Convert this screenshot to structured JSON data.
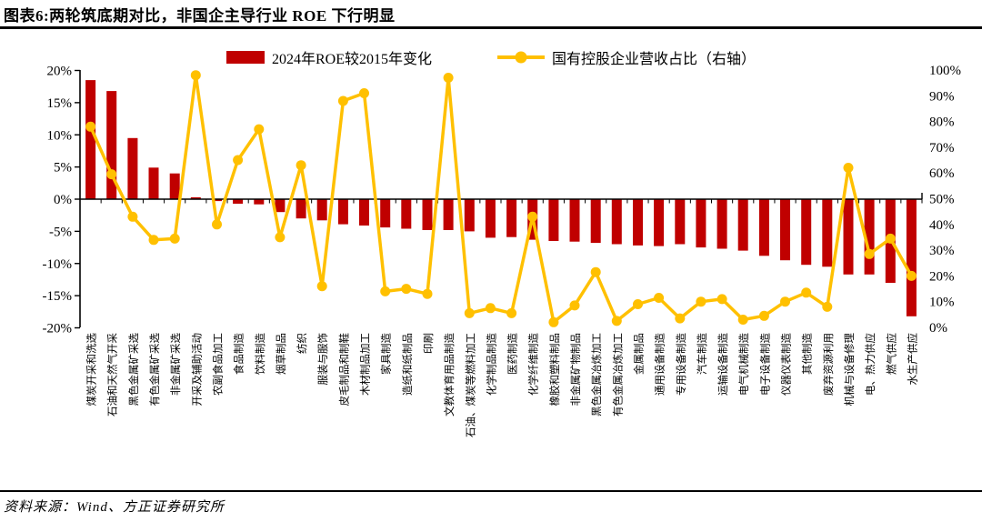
{
  "page": {
    "title": "图表6:两轮筑底期对比，非国企主导行业 ROE 下行明显",
    "source": "资料来源：Wind、方正证券研究所"
  },
  "legend": {
    "bar_label": "2024年ROE较2015年变化",
    "line_label": "国有控股企业营收占比（右轴）"
  },
  "colors": {
    "bar": "#C00000",
    "line": "#FFC000",
    "axis": "#000000"
  },
  "chart_data": {
    "type": "bar+line combo",
    "title": "图表6:两轮筑底期对比，非国企主导行业 ROE 下行明显",
    "grid": "off",
    "legend_position": "top-center",
    "left_axis": {
      "unit": "%",
      "range": [
        -20,
        20
      ],
      "tick_labels": [
        "20%",
        "15%",
        "10%",
        "5%",
        "0%",
        "-5%",
        "-10%",
        "-15%",
        "-20%"
      ],
      "tick_values": [
        20,
        15,
        10,
        5,
        0,
        -5,
        -10,
        -15,
        -20
      ]
    },
    "right_axis": {
      "unit": "%",
      "range": [
        0,
        100
      ],
      "tick_labels": [
        "100%",
        "90%",
        "80%",
        "70%",
        "60%",
        "50%",
        "40%",
        "30%",
        "20%",
        "10%",
        "0%"
      ],
      "tick_values": [
        100,
        90,
        80,
        70,
        60,
        50,
        40,
        30,
        20,
        10,
        0
      ]
    },
    "categories": [
      "煤炭开采和洗选",
      "石油和天然气开采",
      "黑色金属矿采选",
      "有色金属矿采选",
      "非金属矿采选",
      "开采及辅助活动",
      "农副食品加工",
      "食品制造",
      "饮料制造",
      "烟草制品",
      "纺织",
      "服装与服饰",
      "皮毛制品和制鞋",
      "木材制品加工",
      "家具制造",
      "造纸和纸制品",
      "印刷",
      "文教体育用品制造",
      "石油、煤炭等燃料加工",
      "化学制品制造",
      "医药制造",
      "化学纤维制造",
      "橡胶和塑料制品",
      "非金属矿物制品",
      "黑色金属冶炼加工",
      "有色金属冶炼加工",
      "金属制品",
      "通用设备制造",
      "专用设备制造",
      "汽车制造",
      "运输设备制造",
      "电气机械制造",
      "电子设备制造",
      "仪器仪表制造",
      "其他制造",
      "废弃资源利用",
      "机械与设备修理",
      "电、热力供应",
      "燃气供应",
      "水生产供应"
    ],
    "series": [
      {
        "name": "2024年ROE较2015年变化",
        "type": "bar",
        "axis": "left",
        "unit": "%",
        "values": [
          18.5,
          16.8,
          9.5,
          4.9,
          4.0,
          0.3,
          -0.3,
          -0.7,
          -0.8,
          -2.0,
          -3.0,
          -3.3,
          -3.9,
          -4.1,
          -4.4,
          -4.6,
          -4.8,
          -4.8,
          -5.0,
          -6.0,
          -5.9,
          -6.3,
          -6.5,
          -6.6,
          -6.8,
          -7.0,
          -7.2,
          -7.3,
          -7.0,
          -7.5,
          -7.7,
          -8.0,
          -8.8,
          -9.5,
          -10.2,
          -10.5,
          -11.7,
          -11.7,
          -13.0,
          -18.2
        ]
      },
      {
        "name": "国有控股企业营收占比（右轴）",
        "type": "line",
        "axis": "right",
        "unit": "%",
        "values": [
          78,
          59.5,
          43,
          34,
          34.5,
          98,
          40,
          65,
          77,
          35,
          63,
          16,
          88,
          91,
          14,
          15,
          13,
          97,
          5.5,
          7.5,
          5.5,
          43,
          2,
          8.5,
          21.5,
          2.5,
          9,
          11.5,
          3.5,
          10,
          11,
          3,
          4.5,
          10,
          13.5,
          8,
          62,
          28.5,
          34.5,
          20
        ]
      }
    ]
  }
}
